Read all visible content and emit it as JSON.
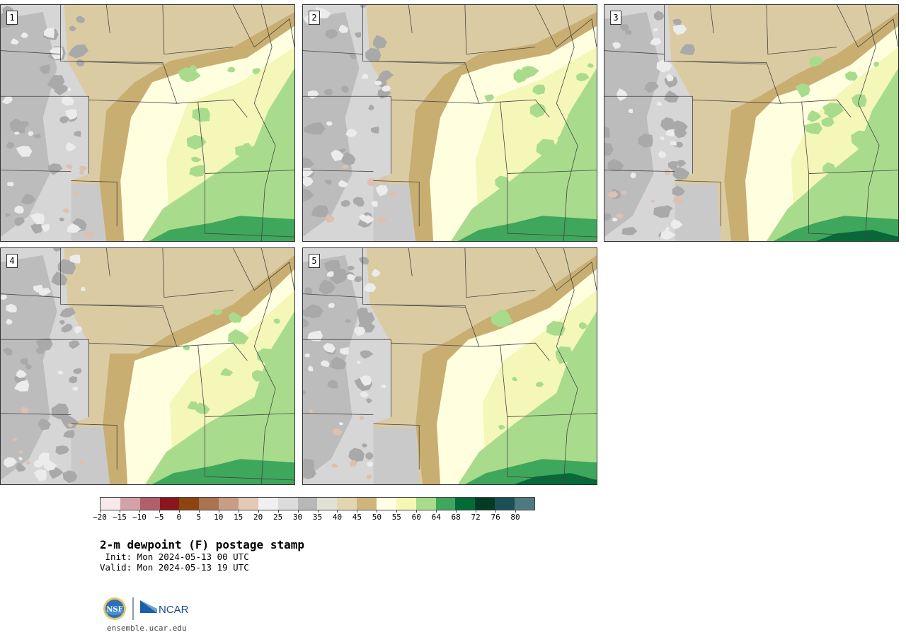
{
  "panels": [
    {
      "label": "1",
      "variant": 0
    },
    {
      "label": "2",
      "variant": 1
    },
    {
      "label": "3",
      "variant": 2
    },
    {
      "label": "4",
      "variant": 3
    },
    {
      "label": "5",
      "variant": 4
    }
  ],
  "legend": {
    "colors": [
      "#f5e9ea",
      "#d4a1a8",
      "#b0606a",
      "#8a1620",
      "#8c4410",
      "#a8734e",
      "#c79e85",
      "#e3c8b6",
      "#f0f0f0",
      "#dcdcdc",
      "#b8b8b8",
      "#e2e1d6",
      "#e3d5b0",
      "#cfb57c",
      "#ffffe6",
      "#f5f7b5",
      "#a8dc8c",
      "#3ea75c",
      "#036b38",
      "#043b25",
      "#1b5155",
      "#4d7a80"
    ],
    "tick_labels": [
      "−20",
      "−15",
      "−10",
      "−5",
      "0",
      "5",
      "10",
      "15",
      "20",
      "25",
      "30",
      "35",
      "40",
      "45",
      "50",
      "55",
      "60",
      "64",
      "68",
      "72",
      "76",
      "80"
    ]
  },
  "title": "2-m dewpoint (F) postage stamp",
  "init_line": " Init: Mon 2024-05-13 00 UTC",
  "valid_line": "Valid: Mon 2024-05-13 19 UTC",
  "logo": {
    "nsf_text": "NSF",
    "ncar_text": "NCAR"
  },
  "url": "ensemble.ucar.edu"
}
